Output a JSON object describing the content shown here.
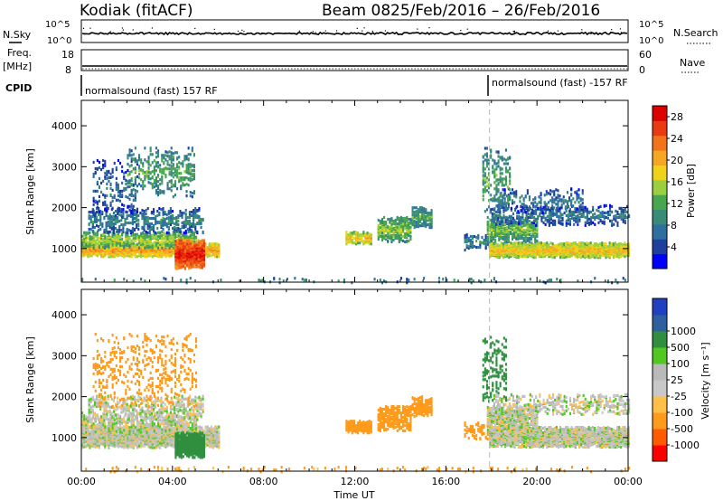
{
  "header": {
    "station": "Kodiak (fitACF)",
    "beam": "Beam 08",
    "date_range": "25/Feb/2016 – 26/Feb/2016"
  },
  "strips": {
    "nsky_label": "N.Sky",
    "nsky_ticks": [
      "10^5",
      "10^0"
    ],
    "nsearch_label": "N.Search",
    "nsearch_ticks": [
      "10^5",
      "10^0"
    ],
    "freq_label_1": "Freq.",
    "freq_label_2": "[MHz]",
    "freq_ticks": [
      "18",
      "8"
    ],
    "nave_label": "Nave",
    "nave_ticks": [
      "60",
      "0"
    ],
    "cpid_label": "CPID",
    "cpid_segments": [
      {
        "label": "normalsound (fast) 157 RF",
        "start": "00:00"
      },
      {
        "label": "normalsound (fast) -157 RF",
        "start": "17:55"
      }
    ]
  },
  "colors": {
    "power_scale": [
      "#0000ff",
      "#1f3f9f",
      "#2e6fa0",
      "#3a8a7a",
      "#47a64e",
      "#9bcf3f",
      "#f0d21a",
      "#f5a623",
      "#f2741a",
      "#ea3a12",
      "#dd0000"
    ],
    "velocity_scale": [
      "#ff0000",
      "#ff5a00",
      "#ff9a1a",
      "#ffc04a",
      "#c8c8c8",
      "#b9b9b9",
      "#50c820",
      "#2f8f3f",
      "#2f5f9f",
      "#2040c0"
    ]
  },
  "chart_data": [
    {
      "type": "heatmap",
      "name": "Power",
      "xlabel": "",
      "ylabel": "Slant Range [km]",
      "xlim": [
        "00:00",
        "24:00"
      ],
      "ylim": [
        180,
        4620
      ],
      "y_ticks": [
        1000,
        2000,
        3000,
        4000
      ],
      "colorbar_label": "Power [dB]",
      "colorbar_ticks": [
        4,
        8,
        12,
        16,
        20,
        24,
        28
      ],
      "colorbar_range": [
        0,
        30
      ],
      "blobs": [
        {
          "t0": 0.0,
          "t1": 6.0,
          "r": 1000,
          "w": 160,
          "val": 22,
          "dens": 0.97
        },
        {
          "t0": 0.0,
          "t1": 5.0,
          "r": 1250,
          "w": 200,
          "val": 16,
          "dens": 0.55
        },
        {
          "t0": 0.3,
          "t1": 5.3,
          "r": 1720,
          "w": 300,
          "val": 9,
          "dens": 0.35
        },
        {
          "t0": 0.5,
          "t1": 2.5,
          "r": 2500,
          "w": 700,
          "val": 7,
          "dens": 0.13
        },
        {
          "t0": 2.0,
          "t1": 5.0,
          "r": 2900,
          "w": 600,
          "val": 12,
          "dens": 0.2
        },
        {
          "t0": 4.1,
          "t1": 5.4,
          "r": 900,
          "w": 350,
          "val": 29,
          "dens": 0.95
        },
        {
          "t0": 11.6,
          "t1": 12.7,
          "r": 1300,
          "w": 150,
          "val": 20,
          "dens": 0.8
        },
        {
          "t0": 13.0,
          "t1": 14.5,
          "r": 1500,
          "w": 300,
          "val": 15,
          "dens": 0.6
        },
        {
          "t0": 14.5,
          "t1": 15.4,
          "r": 1800,
          "w": 250,
          "val": 12,
          "dens": 0.6
        },
        {
          "t0": 16.8,
          "t1": 18.0,
          "r": 1200,
          "w": 200,
          "val": 9,
          "dens": 0.3
        },
        {
          "t0": 17.9,
          "t1": 24.0,
          "r": 1000,
          "w": 180,
          "val": 20,
          "dens": 0.95
        },
        {
          "t0": 17.8,
          "t1": 20.0,
          "r": 1500,
          "w": 300,
          "val": 14,
          "dens": 0.65
        },
        {
          "t0": 18.0,
          "t1": 24.0,
          "r": 1850,
          "w": 250,
          "val": 8,
          "dens": 0.3
        },
        {
          "t0": 18.3,
          "t1": 22.0,
          "r": 2200,
          "w": 300,
          "val": 8,
          "dens": 0.18
        },
        {
          "t0": 17.6,
          "t1": 18.8,
          "r": 2700,
          "w": 800,
          "val": 12,
          "dens": 0.2
        },
        {
          "t0": 0.0,
          "t1": 24.0,
          "r": 260,
          "w": 60,
          "val": 10,
          "dens": 0.06
        }
      ]
    },
    {
      "type": "heatmap",
      "name": "Velocity",
      "xlabel": "Time UT",
      "ylabel": "Slant Range [km]",
      "x_ticks": [
        "00:00",
        "04:00",
        "08:00",
        "12:00",
        "16:00",
        "20:00",
        "00:00"
      ],
      "xlim": [
        "00:00",
        "24:00"
      ],
      "ylim": [
        180,
        4620
      ],
      "y_ticks": [
        1000,
        2000,
        3000,
        4000
      ],
      "colorbar_label": "Velocity [m s⁻¹]",
      "colorbar_ticks": [
        -1000,
        -500,
        -100,
        -25,
        25,
        100,
        500,
        1000
      ],
      "blobs": [
        {
          "t0": 0.0,
          "t1": 6.0,
          "r": 1050,
          "w": 260,
          "val": 0,
          "dens": 0.97
        },
        {
          "t0": 0.0,
          "t1": 5.0,
          "r": 1400,
          "w": 250,
          "val": 0,
          "dens": 0.45
        },
        {
          "t0": 0.3,
          "t1": 5.3,
          "r": 1750,
          "w": 300,
          "val": 0,
          "dens": 0.3
        },
        {
          "t0": 0.5,
          "t1": 5.0,
          "r": 2700,
          "w": 900,
          "val": -200,
          "dens": 0.12
        },
        {
          "t0": 4.1,
          "t1": 5.4,
          "r": 850,
          "w": 300,
          "val": 150,
          "dens": 0.95
        },
        {
          "t0": 11.6,
          "t1": 12.7,
          "r": 1300,
          "w": 150,
          "val": -400,
          "dens": 0.8
        },
        {
          "t0": 13.0,
          "t1": 14.5,
          "r": 1500,
          "w": 300,
          "val": -450,
          "dens": 0.6
        },
        {
          "t0": 14.5,
          "t1": 15.4,
          "r": 1800,
          "w": 250,
          "val": -300,
          "dens": 0.6
        },
        {
          "t0": 16.8,
          "t1": 18.0,
          "r": 1200,
          "w": 200,
          "val": -150,
          "dens": 0.3
        },
        {
          "t0": 17.9,
          "t1": 24.0,
          "r": 1050,
          "w": 250,
          "val": 0,
          "dens": 0.95
        },
        {
          "t0": 17.8,
          "t1": 20.0,
          "r": 1500,
          "w": 300,
          "val": 0,
          "dens": 0.65
        },
        {
          "t0": 18.0,
          "t1": 24.0,
          "r": 1850,
          "w": 250,
          "val": 0,
          "dens": 0.3
        },
        {
          "t0": 17.6,
          "t1": 18.6,
          "r": 2700,
          "w": 800,
          "val": 150,
          "dens": 0.2
        },
        {
          "t0": 0.0,
          "t1": 24.0,
          "r": 260,
          "w": 60,
          "val": -120,
          "dens": 0.06
        }
      ]
    }
  ]
}
